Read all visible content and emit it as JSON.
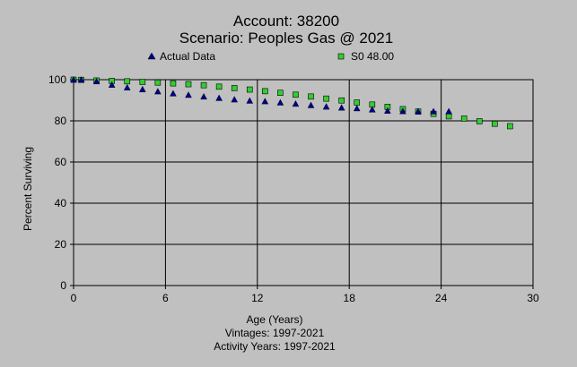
{
  "chart_data": {
    "type": "scatter",
    "title": "Account: 38200",
    "subtitle": "Scenario: Peoples Gas @ 2021",
    "xlabel": "Age (Years)",
    "ylabel": "Percent Surviving",
    "footnotes": [
      "Vintages: 1997-2021",
      "Activity Years: 1997-2021"
    ],
    "xlim": [
      0,
      30
    ],
    "ylim": [
      0,
      100
    ],
    "x_ticks": [
      0,
      6,
      12,
      18,
      24,
      30
    ],
    "y_ticks": [
      0,
      20,
      40,
      60,
      80,
      100
    ],
    "grid": true,
    "legend_placement": "top-center",
    "series": [
      {
        "name": "Actual Data",
        "marker": "triangle",
        "color": "#00008b",
        "x": [
          0,
          0.5,
          1.5,
          2.5,
          3.5,
          4.5,
          5.5,
          6.5,
          7.5,
          8.5,
          9.5,
          10.5,
          11.5,
          12.5,
          13.5,
          14.5,
          15.5,
          16.5,
          17.5,
          18.5,
          19.5,
          20.5,
          21.5,
          22.5,
          23.5,
          24.5
        ],
        "y": [
          100,
          100,
          99.2,
          97.5,
          96.2,
          95.3,
          94.3,
          93.3,
          92.6,
          91.8,
          91.1,
          90.4,
          89.8,
          89.5,
          88.9,
          88.3,
          87.6,
          86.9,
          86.4,
          86.1,
          85.5,
          84.9,
          84.7,
          84.6,
          84.6,
          84.6
        ]
      },
      {
        "name": "S0 48.00",
        "marker": "square",
        "color": "#33cc33",
        "x": [
          0,
          0.5,
          1.5,
          2.5,
          3.5,
          4.5,
          5.5,
          6.5,
          7.5,
          8.5,
          9.5,
          10.5,
          11.5,
          12.5,
          13.5,
          14.5,
          15.5,
          16.5,
          17.5,
          18.5,
          19.5,
          20.5,
          21.5,
          22.5,
          23.5,
          24.5,
          25.5,
          26.5,
          27.5,
          28.5
        ],
        "y": [
          100,
          99.9,
          99.6,
          99.4,
          99.2,
          98.9,
          98.6,
          98.2,
          97.8,
          97.3,
          96.6,
          95.9,
          95.2,
          94.4,
          93.6,
          92.7,
          91.8,
          90.8,
          89.9,
          88.9,
          87.9,
          86.8,
          85.7,
          84.5,
          83.4,
          82.2,
          81.1,
          79.8,
          78.6,
          77.4
        ]
      }
    ]
  }
}
